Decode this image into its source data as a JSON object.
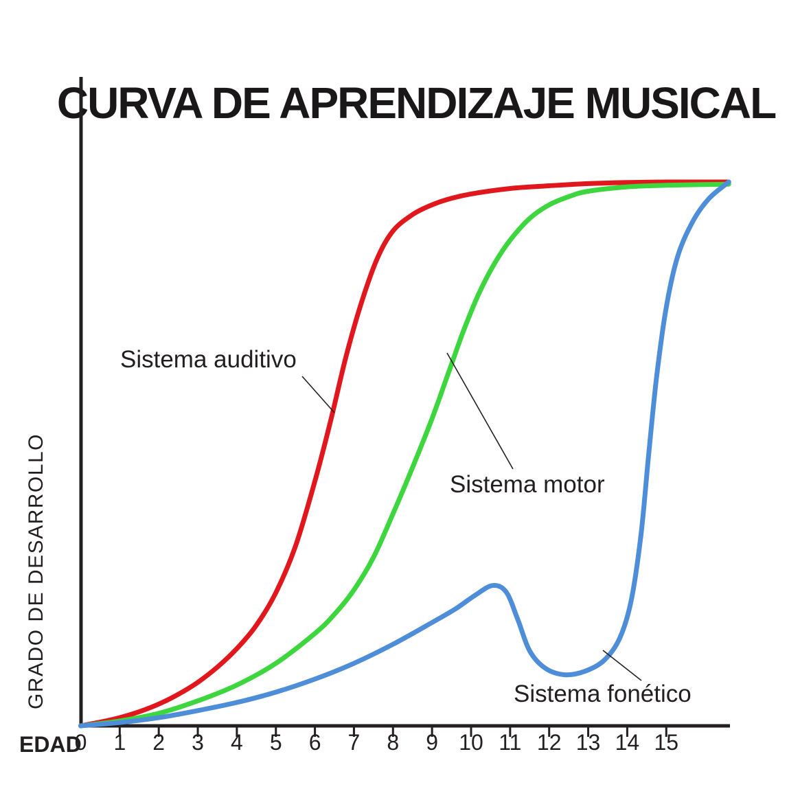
{
  "title": "CURVA DE APRENDIZAJE MUSICAL",
  "chart_data": {
    "type": "line",
    "title": "CURVA DE APRENDIZAJE MUSICAL",
    "xlabel": "EDAD",
    "ylabel": "GRADO DE DESARROLLO",
    "x_ticks": [
      0,
      1,
      2,
      3,
      4,
      5,
      6,
      7,
      8,
      9,
      10,
      11,
      12,
      13,
      14,
      15
    ],
    "x_range": [
      0,
      16.6
    ],
    "y_range": [
      0,
      100
    ],
    "grid": false,
    "legend_position": "inline-annotations",
    "axis_color": "#231f20",
    "series": [
      {
        "name": "Sistema auditivo",
        "color": "#e0181e",
        "points": [
          [
            0,
            0
          ],
          [
            0.5,
            0.7
          ],
          [
            1,
            1.5
          ],
          [
            1.5,
            2.6
          ],
          [
            2,
            4
          ],
          [
            2.5,
            5.8
          ],
          [
            3,
            8
          ],
          [
            3.5,
            10.8
          ],
          [
            4,
            14.2
          ],
          [
            4.5,
            18.5
          ],
          [
            5,
            24.5
          ],
          [
            5.5,
            33
          ],
          [
            6,
            45
          ],
          [
            6.4,
            56
          ],
          [
            6.8,
            68
          ],
          [
            7.2,
            78
          ],
          [
            7.6,
            86
          ],
          [
            8,
            91
          ],
          [
            8.5,
            94
          ],
          [
            9,
            95.8
          ],
          [
            9.5,
            97
          ],
          [
            10,
            97.8
          ],
          [
            11,
            98.8
          ],
          [
            12,
            99.3
          ],
          [
            13,
            99.7
          ],
          [
            14,
            99.9
          ],
          [
            15,
            100
          ],
          [
            16.6,
            100
          ]
        ]
      },
      {
        "name": "Sistema motor",
        "color": "#3ed63e",
        "points": [
          [
            0,
            0
          ],
          [
            1,
            0.9
          ],
          [
            2,
            2.3
          ],
          [
            3,
            4.6
          ],
          [
            4,
            7.5
          ],
          [
            5,
            11.5
          ],
          [
            6,
            17
          ],
          [
            6.5,
            20.5
          ],
          [
            7,
            25
          ],
          [
            7.5,
            31
          ],
          [
            8,
            39
          ],
          [
            8.5,
            47.5
          ],
          [
            9,
            56.5
          ],
          [
            9.4,
            64.5
          ],
          [
            9.8,
            72.5
          ],
          [
            10.2,
            79.5
          ],
          [
            10.6,
            85
          ],
          [
            11,
            89.3
          ],
          [
            11.5,
            93.3
          ],
          [
            12,
            95.8
          ],
          [
            12.5,
            97.3
          ],
          [
            13,
            98.3
          ],
          [
            14,
            99.1
          ],
          [
            15,
            99.4
          ],
          [
            16.6,
            99.6
          ]
        ]
      },
      {
        "name": "Sistema fonético",
        "color": "#4e8ed8",
        "points": [
          [
            0,
            0
          ],
          [
            1,
            0.6
          ],
          [
            2,
            1.5
          ],
          [
            3,
            2.8
          ],
          [
            4,
            4.3
          ],
          [
            5,
            6.2
          ],
          [
            6,
            8.6
          ],
          [
            7,
            11.5
          ],
          [
            8,
            15
          ],
          [
            9,
            19
          ],
          [
            9.6,
            21.5
          ],
          [
            10.1,
            24
          ],
          [
            10.55,
            25.8
          ],
          [
            10.9,
            24.6
          ],
          [
            11.2,
            19.5
          ],
          [
            11.5,
            13.8
          ],
          [
            11.9,
            10.6
          ],
          [
            12.4,
            9.4
          ],
          [
            12.9,
            10
          ],
          [
            13.4,
            12
          ],
          [
            13.8,
            16
          ],
          [
            14.1,
            23
          ],
          [
            14.35,
            35
          ],
          [
            14.55,
            50
          ],
          [
            14.75,
            64
          ],
          [
            15,
            77
          ],
          [
            15.3,
            86.5
          ],
          [
            15.7,
            93
          ],
          [
            16.1,
            97
          ],
          [
            16.6,
            100
          ]
        ]
      }
    ],
    "annotations": [
      {
        "text": "Sistema auditivo"
      },
      {
        "text": "Sistema motor"
      },
      {
        "text": "Sistema fonético"
      }
    ]
  }
}
